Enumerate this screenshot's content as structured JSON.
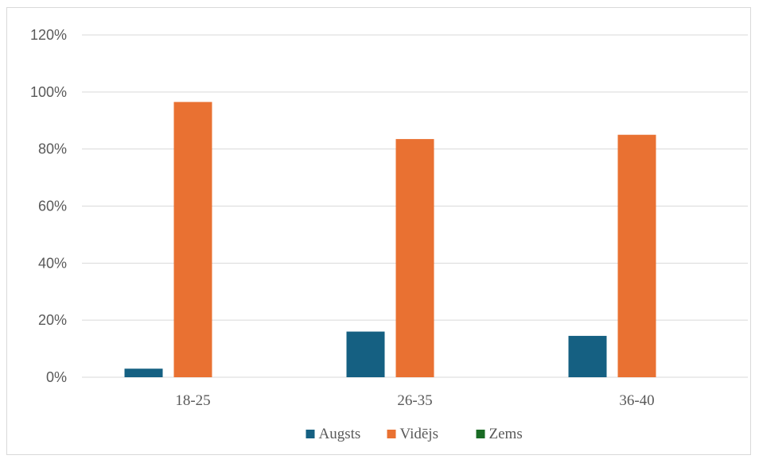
{
  "chart_data": {
    "type": "bar",
    "categories": [
      "18-25",
      "26-35",
      "36-40"
    ],
    "series": [
      {
        "name": "Augsts",
        "color": "#156082",
        "values": [
          3,
          16,
          14.5
        ]
      },
      {
        "name": "Vidējs",
        "color": "#E97132",
        "values": [
          96.5,
          83.5,
          85
        ]
      },
      {
        "name": "Zems",
        "color": "#196B24",
        "values": [
          0,
          0,
          0
        ]
      }
    ],
    "ylim": [
      0,
      120
    ],
    "yticks": [
      "0%",
      "20%",
      "40%",
      "60%",
      "80%",
      "100%",
      "120%"
    ],
    "grid": true,
    "legend": "bottom"
  }
}
